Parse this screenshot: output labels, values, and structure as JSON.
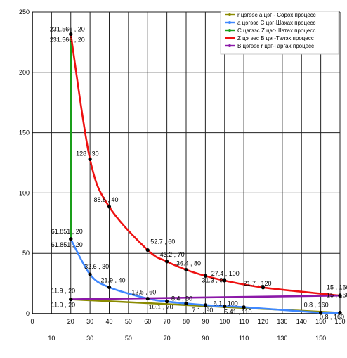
{
  "chart_data": {
    "type": "line",
    "x_range": [
      0,
      160
    ],
    "y_range": [
      0,
      250
    ],
    "y_ticks": [
      "0",
      "50",
      "100",
      "150",
      "200",
      "250"
    ],
    "x_ticks_upper": [
      "0",
      "20",
      "30",
      "40",
      "50",
      "60",
      "70",
      "80",
      "90",
      "100",
      "110",
      "120",
      "130",
      "140",
      "150",
      "160"
    ],
    "x_ticks_lower": [
      "10",
      "30",
      "50",
      "70",
      "90",
      "110",
      "130",
      "150"
    ],
    "grid": true,
    "legend_position": "top-right",
    "series": [
      {
        "name": "r цэгээс a цэг - Сорох процесс",
        "color": "#8a8a00",
        "points": [
          [
            20,
            11.9
          ],
          [
            160,
            0.8
          ]
        ]
      },
      {
        "name": "a цэгээс C цэг-Шахах процесс",
        "color": "#3f88ff",
        "points": [
          [
            20,
            61.851
          ],
          [
            30,
            32.6
          ],
          [
            40,
            21.9
          ],
          [
            60,
            12.5
          ],
          [
            70,
            10.1
          ],
          [
            80,
            8.4
          ],
          [
            90,
            7.1
          ],
          [
            100,
            6.1
          ],
          [
            110,
            5.41
          ],
          [
            150,
            0.8
          ],
          [
            160,
            0.8
          ]
        ]
      },
      {
        "name": "C цэгээс Z цэг-Шатах процесс",
        "color": "#1a9e1a",
        "points": [
          [
            20,
            61.851
          ],
          [
            20,
            231.566
          ]
        ]
      },
      {
        "name": "Z цэгээс B цэг-Тэлэх процесс",
        "color": "#ee1111",
        "points": [
          [
            20,
            231.566
          ],
          [
            30,
            128
          ],
          [
            40,
            88.6
          ],
          [
            60,
            52.7
          ],
          [
            70,
            43.2
          ],
          [
            80,
            36.4
          ],
          [
            90,
            31.3
          ],
          [
            100,
            27.4
          ],
          [
            120,
            21.7
          ],
          [
            160,
            15
          ]
        ]
      },
      {
        "name": "B цэгээс r цэг-Гаргах процесс",
        "color": "#8b18a8",
        "points": [
          [
            20,
            11.9
          ],
          [
            160,
            15
          ]
        ]
      }
    ],
    "data_labels": [
      {
        "text": "231.566 , 20",
        "x": 20,
        "y": 231.566,
        "dx": -30,
        "dy": -4
      },
      {
        "text": "231.566 , 20",
        "x": 20,
        "y": 231.566,
        "dx": -30,
        "dy": 11
      },
      {
        "text": "128 , 30",
        "x": 30,
        "y": 128,
        "dx": -20,
        "dy": -5
      },
      {
        "text": "88.6 , 40",
        "x": 40,
        "y": 88.6,
        "dx": -22,
        "dy": -7
      },
      {
        "text": "61.851 , 20",
        "x": 20,
        "y": 61.851,
        "dx": -28,
        "dy": -8
      },
      {
        "text": "61.851 , 20",
        "x": 20,
        "y": 61.851,
        "dx": -28,
        "dy": 11
      },
      {
        "text": "52.7 , 60",
        "x": 60,
        "y": 52.7,
        "dx": 4,
        "dy": -9
      },
      {
        "text": "43.2 , 70",
        "x": 70,
        "y": 43.2,
        "dx": -10,
        "dy": -7
      },
      {
        "text": "36.4 , 80",
        "x": 80,
        "y": 36.4,
        "dx": -14,
        "dy": -6
      },
      {
        "text": "27.4 , 100",
        "x": 100,
        "y": 27.4,
        "dx": -19,
        "dy": -7
      },
      {
        "text": "31.3 , 90",
        "x": 90,
        "y": 31.3,
        "dx": -5,
        "dy": 9
      },
      {
        "text": "21.7 , 120",
        "x": 120,
        "y": 21.7,
        "dx": -28,
        "dy": -3
      },
      {
        "text": "15 , 160",
        "x": 160,
        "y": 15,
        "dx": -19,
        "dy": -9
      },
      {
        "text": "15 , 160",
        "x": 160,
        "y": 15,
        "dx": -19,
        "dy": 2
      },
      {
        "text": "32.6 , 30",
        "x": 30,
        "y": 32.6,
        "dx": -8,
        "dy": -8
      },
      {
        "text": "21.9 , 40",
        "x": 40,
        "y": 21.9,
        "dx": -12,
        "dy": -7
      },
      {
        "text": "12.5 , 60",
        "x": 60,
        "y": 12.5,
        "dx": -23,
        "dy": -6
      },
      {
        "text": "11.9 , 20",
        "x": 20,
        "y": 11.9,
        "dx": -28,
        "dy": -9
      },
      {
        "text": "11.9 , 20",
        "x": 20,
        "y": 11.9,
        "dx": -28,
        "dy": 11
      },
      {
        "text": "10.1 , 70",
        "x": 70,
        "y": 10.1,
        "dx": -26,
        "dy": 11
      },
      {
        "text": "8.4 , 80",
        "x": 80,
        "y": 8.4,
        "dx": -21,
        "dy": -4
      },
      {
        "text": "7.1 , 90",
        "x": 90,
        "y": 7.1,
        "dx": -19,
        "dy": 10
      },
      {
        "text": "6.1 , 100",
        "x": 100,
        "y": 6.1,
        "dx": -16,
        "dy": -1
      },
      {
        "text": "5.41 , 110",
        "x": 110,
        "y": 5.41,
        "dx": -28,
        "dy": 10
      },
      {
        "text": "0.8 , 160",
        "x": 150,
        "y": 0.8,
        "dx": -24,
        "dy": -8
      },
      {
        "text": "0.8 , 160",
        "x": 160,
        "y": 0.8,
        "dx": -29,
        "dy": 9
      }
    ]
  }
}
